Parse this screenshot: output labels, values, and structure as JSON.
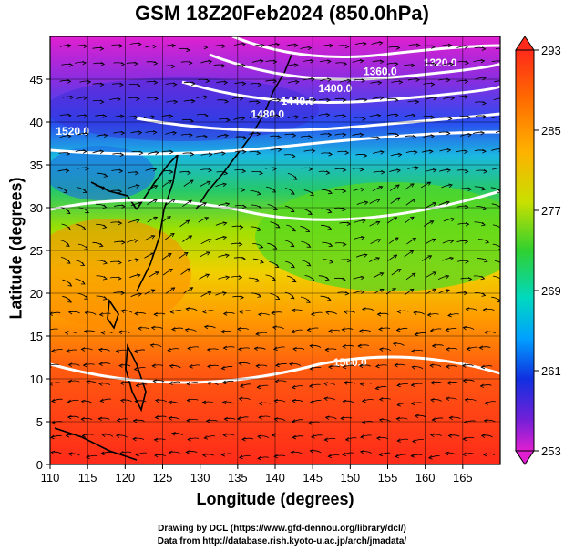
{
  "title": "GSM 18Z20Feb2024 (850.0hPa)",
  "xlabel": "Longitude (degrees)",
  "ylabel": "Latitude  (degrees)",
  "x_ticks": [
    "110",
    "115",
    "120",
    "125",
    "130",
    "135",
    "140",
    "145",
    "150",
    "155",
    "160",
    "165"
  ],
  "y_ticks": [
    "0",
    "5",
    "10",
    "15",
    "20",
    "25",
    "30",
    "35",
    "40",
    "45"
  ],
  "colorbar_ticks": [
    "293",
    "285",
    "277",
    "269",
    "261",
    "253"
  ],
  "contour_labels": [
    "1320.0",
    "1360.0",
    "1400.0",
    "1440.0",
    "1480.0",
    "1520.0",
    "1560.0"
  ],
  "credit_line1": "Drawing by DCL (https://www.gfd-dennou.org/library/dcl/)",
  "credit_line2": "Data from http://database.rish.kyoto-u.ac.jp/arch/jmadata/",
  "chart_data": {
    "type": "heatmap",
    "title": "GSM 18Z20Feb2024 (850.0hPa)",
    "xlabel": "Longitude (degrees)",
    "ylabel": "Latitude  (degrees)",
    "xlim": [
      110,
      170
    ],
    "ylim": [
      0,
      50
    ],
    "colorbar": {
      "min": 253,
      "max": 293,
      "ticks": [
        293,
        285,
        277,
        269,
        261,
        253
      ]
    },
    "colors": [
      "#d21ad2",
      "#5a1ee0",
      "#1e3cff",
      "#00b4ff",
      "#00e0b0",
      "#35d52d",
      "#c8e600",
      "#ffd000",
      "#ff8a00",
      "#ff3a1a",
      "#e01010"
    ],
    "temperature_bands": [
      {
        "lat": 48,
        "temp": 253
      },
      {
        "lat": 43,
        "temp": 259
      },
      {
        "lat": 38,
        "temp": 268
      },
      {
        "lat": 33,
        "temp": 277
      },
      {
        "lat": 27,
        "temp": 281
      },
      {
        "lat": 22,
        "temp": 285
      },
      {
        "lat": 15,
        "temp": 289
      },
      {
        "lat": 5,
        "temp": 291
      }
    ],
    "contours": [
      {
        "label": "1320.0",
        "lon": 162,
        "lat": 46.5
      },
      {
        "label": "1360.0",
        "lon": 154,
        "lat": 45.5
      },
      {
        "label": "1400.0",
        "lon": 148,
        "lat": 43.5
      },
      {
        "label": "1440.0",
        "lon": 143,
        "lat": 42.0
      },
      {
        "label": "1480.0",
        "lon": 139,
        "lat": 40.5
      },
      {
        "label": "1520.0",
        "lon": 113,
        "lat": 38.5
      },
      {
        "label": "1560.0",
        "lon": 150,
        "lat": 11.5
      }
    ],
    "grid": true
  }
}
